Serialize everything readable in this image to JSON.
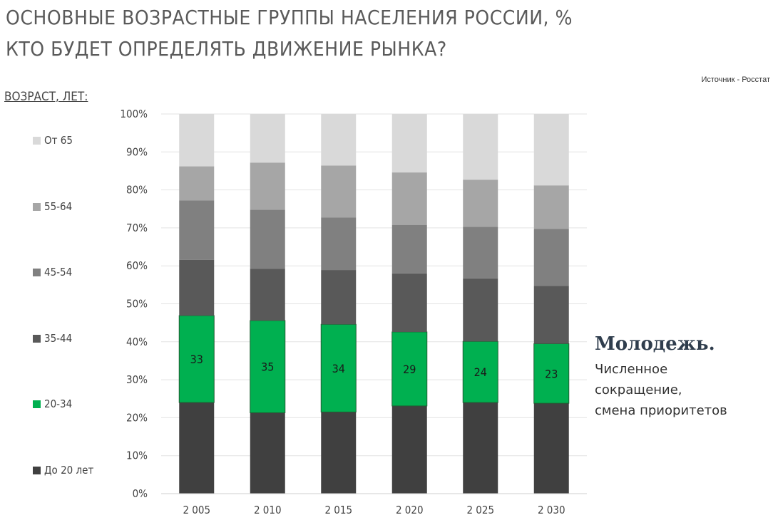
{
  "header": {
    "title_line1": "ОСНОВНЫЕ ВОЗРАСТНЫЕ ГРУППЫ НАСЕЛЕНИЯ РОССИИ, %",
    "title_line2": "КТО БУДЕТ ОПРЕДЕЛЯТЬ ДВИЖЕНИЕ РЫНКА?",
    "source": "Источник  - Росстат"
  },
  "legend": {
    "title": "ВОЗРАСТ, ЛЕТ:",
    "items": [
      {
        "label": "От 65",
        "color": "#d9d9d9"
      },
      {
        "label": "55-64",
        "color": "#a6a6a6"
      },
      {
        "label": "45-54",
        "color": "#808080"
      },
      {
        "label": "35-44",
        "color": "#595959"
      },
      {
        "label": "20-34",
        "color": "#00b050"
      },
      {
        "label": "До 20 лет",
        "color": "#404040"
      }
    ]
  },
  "callout": {
    "title": "Молодежь.",
    "lines": [
      "Численное",
      "сокращение,",
      "смена приоритетов"
    ]
  },
  "chart_data": {
    "type": "bar",
    "stacked": true,
    "categories": [
      "2 005",
      "2 010",
      "2 015",
      "2 020",
      "2 025",
      "2 030"
    ],
    "ylim": [
      0,
      100
    ],
    "yticks": [
      "0%",
      "10%",
      "20%",
      "30%",
      "40%",
      "50%",
      "60%",
      "70%",
      "80%",
      "90%",
      "100%"
    ],
    "grid": true,
    "legend_position": "left",
    "series": [
      {
        "name": "До 20 лет",
        "color": "#404040",
        "values": [
          24.0,
          21.3,
          21.5,
          23.1,
          24.0,
          23.8
        ]
      },
      {
        "name": "20-34",
        "color": "#00b050",
        "values": [
          22.9,
          24.3,
          23.1,
          19.5,
          16.1,
          15.7
        ],
        "labels": [
          "33",
          "35",
          "34",
          "29",
          "24",
          "23"
        ]
      },
      {
        "name": "35-44",
        "color": "#595959",
        "values": [
          14.7,
          13.6,
          14.3,
          15.4,
          16.6,
          15.2
        ]
      },
      {
        "name": "45-54",
        "color": "#808080",
        "values": [
          15.6,
          15.6,
          13.8,
          12.8,
          13.6,
          15.0
        ]
      },
      {
        "name": "55-64",
        "color": "#a6a6a6",
        "values": [
          9.0,
          12.4,
          13.7,
          13.8,
          12.4,
          11.5
        ]
      },
      {
        "name": "От 65",
        "color": "#d9d9d9",
        "values": [
          13.8,
          12.8,
          13.6,
          15.4,
          17.3,
          18.8
        ]
      }
    ]
  }
}
